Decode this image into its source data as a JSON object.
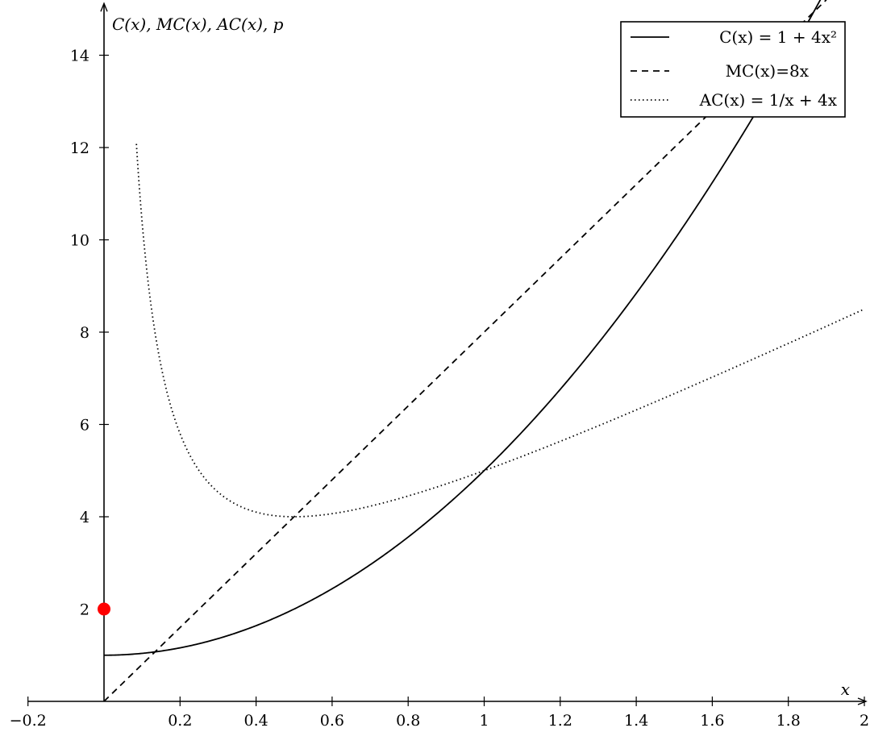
{
  "chart_data": {
    "type": "line",
    "xlabel": "x",
    "ylabel": "C(x), MC(x), AC(x), p",
    "xlim": [
      -0.2,
      2
    ],
    "ylim": [
      0,
      15
    ],
    "xticks": [
      -0.2,
      0.2,
      0.4,
      0.6,
      0.8,
      1,
      1.2,
      1.4,
      1.6,
      1.8,
      2
    ],
    "xtick_labels": [
      "−0.2",
      "0.2",
      "0.4",
      "0.6",
      "0.8",
      "1",
      "1.2",
      "1.4",
      "1.6",
      "1.8",
      "2"
    ],
    "yticks": [
      2,
      4,
      6,
      8,
      10,
      12,
      14
    ],
    "ytick_labels": [
      "2",
      "4",
      "6",
      "8",
      "10",
      "12",
      "14"
    ],
    "grid": false,
    "legend_position": "top-right",
    "series": [
      {
        "name": "C(x) = 1 + 4x²",
        "formula": "1+4x^2",
        "style": "solid",
        "x": [
          0,
          0.2,
          0.4,
          0.6,
          0.8,
          1.0,
          1.2,
          1.4,
          1.6,
          1.8
        ],
        "y": [
          1,
          1.16,
          1.64,
          2.44,
          3.56,
          5.0,
          6.76,
          8.84,
          11.24,
          13.96
        ]
      },
      {
        "name": "MC(x)=8x",
        "formula": "8x",
        "style": "dashed",
        "x": [
          0,
          0.5,
          1.0,
          1.5,
          1.75
        ],
        "y": [
          0,
          4,
          8,
          12,
          14
        ]
      },
      {
        "name": "AC(x) = 1/x + 4x",
        "formula": "1/x+4x",
        "style": "dotted",
        "x": [
          0.08,
          0.1,
          0.2,
          0.3,
          0.5,
          0.8,
          1.0,
          1.5,
          2.0
        ],
        "y": [
          12.82,
          10.4,
          5.8,
          4.53,
          4.0,
          4.45,
          5.0,
          6.67,
          8.5
        ]
      }
    ],
    "points": [
      {
        "x": 0,
        "y": 2,
        "color": "#ff0000"
      }
    ],
    "line_color": "#000000"
  }
}
